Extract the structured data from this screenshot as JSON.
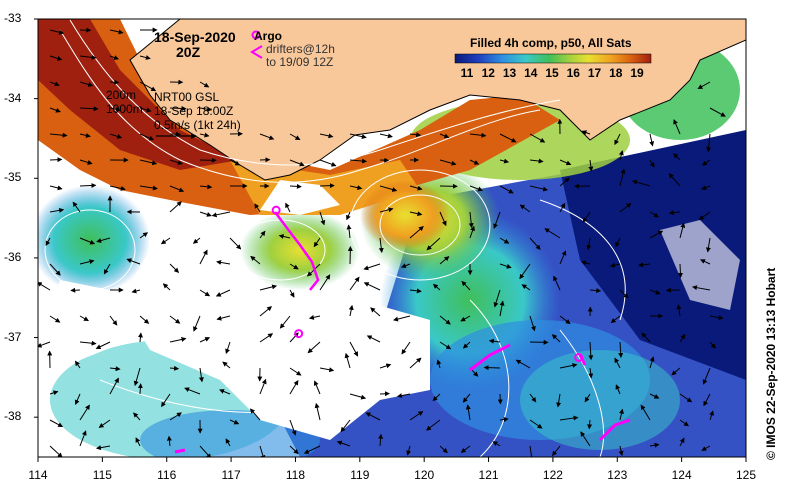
{
  "map": {
    "lon_range": [
      114,
      125
    ],
    "lat_range": [
      -38.5,
      -33
    ],
    "x_ticks": [
      "114",
      "115",
      "116",
      "117",
      "118",
      "119",
      "120",
      "121",
      "122",
      "123",
      "124",
      "125"
    ],
    "y_ticks": [
      "-33",
      "-34",
      "-35",
      "-36",
      "-37",
      "-38"
    ],
    "land_color": "#f9c89a",
    "nodata_color": "#ffffff",
    "contour_color": "#ffffff",
    "arrow_color": "#000000",
    "argo_color": "#ff00ff"
  },
  "header": {
    "date": "18-Sep-2020",
    "hour": "20Z"
  },
  "legend": {
    "argo_label": "Argo",
    "drifters_line1": "drifters@12h",
    "drifters_line2": "to 19/09 12Z",
    "depth_200": "200m",
    "depth_1000": "1000m",
    "nrt_line1": "NRT00 GSL",
    "nrt_line2": "18-Sep 18:00Z",
    "nrt_line3": "0.5m/s (1kt 24h)"
  },
  "colorbar": {
    "title": "Filled 4h comp, p50, All Sats",
    "ticks": [
      "11",
      "12",
      "13",
      "14",
      "15",
      "16",
      "17",
      "18",
      "19"
    ],
    "colors": [
      "#0a1a7a",
      "#1f3fbf",
      "#2f8fe0",
      "#3ac8c8",
      "#3fbf5a",
      "#9fd040",
      "#e8e030",
      "#f0a020",
      "#d86010",
      "#a02010"
    ]
  },
  "credit": "© IMOS 22-Sep-2020 13:13 Hobart",
  "argo_floats": [
    {
      "lon": 117.7,
      "lat": -35.4
    },
    {
      "lon": 118.05,
      "lat": -36.95
    },
    {
      "lon": 122.4,
      "lat": -37.25
    }
  ]
}
